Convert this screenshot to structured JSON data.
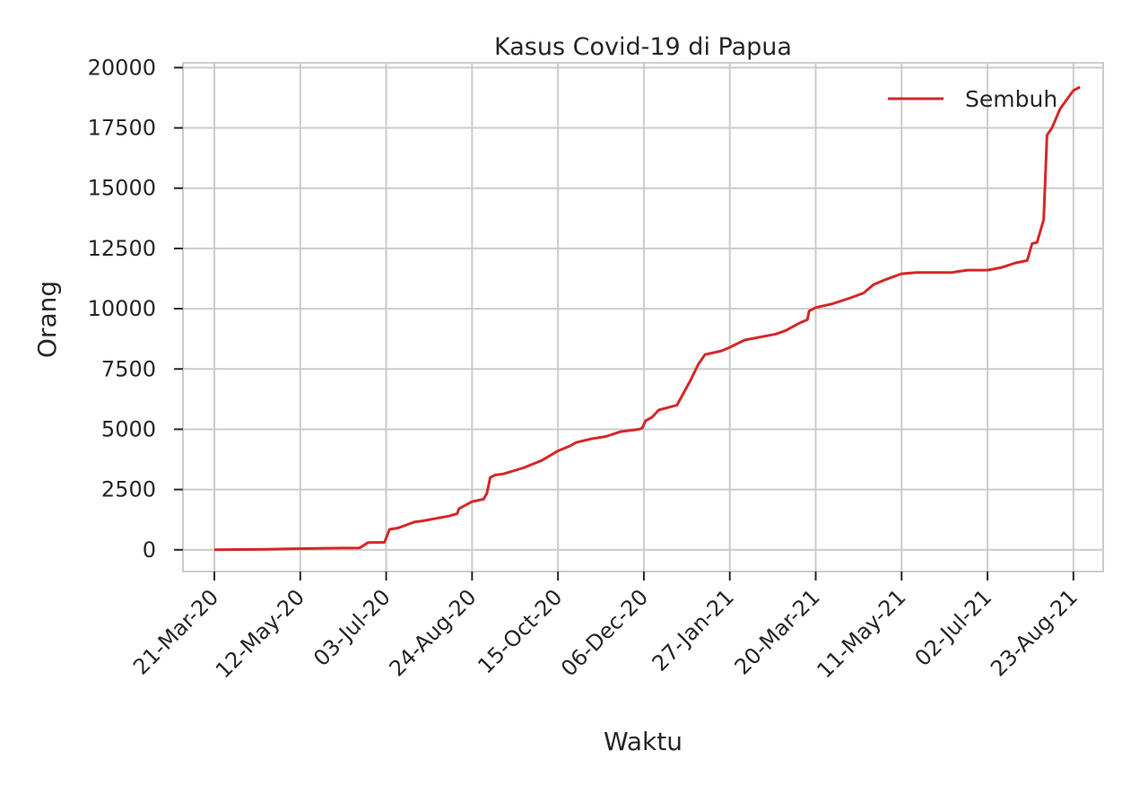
{
  "chart_data": {
    "type": "line",
    "title": "Kasus Covid-19 di Papua",
    "xlabel": "Waktu",
    "ylabel": "Orang",
    "x_type": "date",
    "xlim": [
      "2020-03-02",
      "2021-09-10"
    ],
    "ylim": [
      -900,
      20200
    ],
    "grid": true,
    "legend_position": "top-right",
    "line_color": "#d62728",
    "y_ticks": [
      {
        "value": 0,
        "label": "0"
      },
      {
        "value": 2500,
        "label": "2500"
      },
      {
        "value": 5000,
        "label": "5000"
      },
      {
        "value": 7500,
        "label": "7500"
      },
      {
        "value": 10000,
        "label": "10000"
      },
      {
        "value": 12500,
        "label": "12500"
      },
      {
        "value": 15000,
        "label": "15000"
      },
      {
        "value": 17500,
        "label": "17500"
      },
      {
        "value": 20000,
        "label": "20000"
      }
    ],
    "x_ticks": [
      {
        "date": "2020-03-21",
        "label": "21-Mar-20"
      },
      {
        "date": "2020-05-12",
        "label": "12-May-20"
      },
      {
        "date": "2020-07-03",
        "label": "03-Jul-20"
      },
      {
        "date": "2020-08-24",
        "label": "24-Aug-20"
      },
      {
        "date": "2020-10-15",
        "label": "15-Oct-20"
      },
      {
        "date": "2020-12-06",
        "label": "06-Dec-20"
      },
      {
        "date": "2021-01-27",
        "label": "27-Jan-21"
      },
      {
        "date": "2021-03-20",
        "label": "20-Mar-21"
      },
      {
        "date": "2021-05-11",
        "label": "11-May-21"
      },
      {
        "date": "2021-07-02",
        "label": "02-Jul-21"
      },
      {
        "date": "2021-08-23",
        "label": "23-Aug-21"
      }
    ],
    "series": [
      {
        "name": "Sembuh",
        "points": [
          [
            "2020-03-21",
            0
          ],
          [
            "2020-04-21",
            20
          ],
          [
            "2020-05-12",
            50
          ],
          [
            "2020-06-05",
            70
          ],
          [
            "2020-06-17",
            80
          ],
          [
            "2020-06-22",
            300
          ],
          [
            "2020-07-02",
            310
          ],
          [
            "2020-07-05",
            850
          ],
          [
            "2020-07-10",
            900
          ],
          [
            "2020-07-20",
            1150
          ],
          [
            "2020-07-25",
            1200
          ],
          [
            "2020-08-10",
            1400
          ],
          [
            "2020-08-15",
            1500
          ],
          [
            "2020-08-16",
            1700
          ],
          [
            "2020-08-20",
            1850
          ],
          [
            "2020-08-24",
            2000
          ],
          [
            "2020-08-31",
            2100
          ],
          [
            "2020-09-02",
            2350
          ],
          [
            "2020-09-04",
            3000
          ],
          [
            "2020-09-07",
            3100
          ],
          [
            "2020-09-12",
            3150
          ],
          [
            "2020-09-24",
            3400
          ],
          [
            "2020-10-05",
            3700
          ],
          [
            "2020-10-15",
            4100
          ],
          [
            "2020-10-22",
            4300
          ],
          [
            "2020-10-26",
            4450
          ],
          [
            "2020-11-04",
            4600
          ],
          [
            "2020-11-13",
            4700
          ],
          [
            "2020-11-22",
            4900
          ],
          [
            "2020-12-03",
            5000
          ],
          [
            "2020-12-05",
            5050
          ],
          [
            "2020-12-07",
            5350
          ],
          [
            "2020-12-11",
            5500
          ],
          [
            "2020-12-15",
            5800
          ],
          [
            "2020-12-26",
            6000
          ],
          [
            "2020-12-30",
            6500
          ],
          [
            "2021-01-03",
            7000
          ],
          [
            "2021-01-08",
            7700
          ],
          [
            "2021-01-12",
            8100
          ],
          [
            "2021-01-22",
            8250
          ],
          [
            "2021-01-27",
            8400
          ],
          [
            "2021-02-05",
            8700
          ],
          [
            "2021-02-24",
            8950
          ],
          [
            "2021-03-02",
            9100
          ],
          [
            "2021-03-10",
            9400
          ],
          [
            "2021-03-15",
            9550
          ],
          [
            "2021-03-16",
            9900
          ],
          [
            "2021-03-20",
            10050
          ],
          [
            "2021-03-30",
            10200
          ],
          [
            "2021-04-10",
            10450
          ],
          [
            "2021-04-18",
            10650
          ],
          [
            "2021-04-24",
            11000
          ],
          [
            "2021-05-01",
            11200
          ],
          [
            "2021-05-11",
            11450
          ],
          [
            "2021-05-20",
            11500
          ],
          [
            "2021-06-10",
            11500
          ],
          [
            "2021-06-15",
            11550
          ],
          [
            "2021-06-20",
            11600
          ],
          [
            "2021-07-02",
            11600
          ],
          [
            "2021-07-10",
            11700
          ],
          [
            "2021-07-19",
            11900
          ],
          [
            "2021-07-26",
            12000
          ],
          [
            "2021-07-29",
            12700
          ],
          [
            "2021-08-01",
            12750
          ],
          [
            "2021-08-05",
            13700
          ],
          [
            "2021-08-07",
            17200
          ],
          [
            "2021-08-10",
            17500
          ],
          [
            "2021-08-15",
            18300
          ],
          [
            "2021-08-23",
            19050
          ],
          [
            "2021-08-27",
            19200
          ]
        ]
      }
    ]
  }
}
